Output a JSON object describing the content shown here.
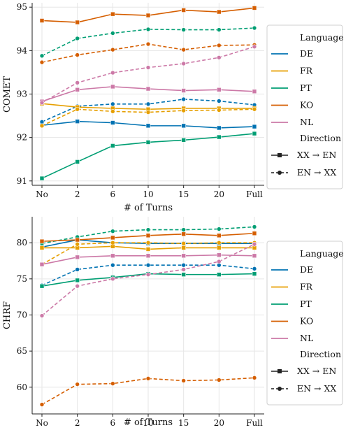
{
  "colors": {
    "DE": "#0072b2",
    "FR": "#e69f00",
    "PT": "#009e73",
    "KO": "#d55e00",
    "NL": "#cc79a7"
  },
  "chart_data": [
    {
      "type": "line",
      "ylabel": "COMET",
      "xlabel": "# of Turns",
      "x": [
        "No",
        "2",
        "6",
        "10",
        "15",
        "20",
        "Full"
      ],
      "ylim": [
        90.9,
        95.1
      ],
      "yticks": [
        91,
        92,
        93,
        94,
        95
      ],
      "grid": true,
      "legend": {
        "placement": "right",
        "title_language": "Language",
        "languages": [
          "DE",
          "FR",
          "PT",
          "KO",
          "NL"
        ],
        "title_direction": "Direction",
        "directions": [
          "XX → EN",
          "EN → XX"
        ]
      },
      "series": [
        {
          "lang": "DE",
          "dir": "XX-EN",
          "values": [
            92.28,
            92.37,
            92.34,
            92.27,
            92.27,
            92.22,
            92.25
          ]
        },
        {
          "lang": "DE",
          "dir": "EN-XX",
          "values": [
            92.36,
            92.72,
            92.77,
            92.77,
            92.88,
            92.84,
            92.75
          ]
        },
        {
          "lang": "FR",
          "dir": "XX-EN",
          "values": [
            92.78,
            92.7,
            92.67,
            92.65,
            92.67,
            92.67,
            92.67
          ]
        },
        {
          "lang": "FR",
          "dir": "EN-XX",
          "values": [
            92.27,
            92.65,
            92.6,
            92.58,
            92.62,
            92.63,
            92.65
          ]
        },
        {
          "lang": "PT",
          "dir": "XX-EN",
          "values": [
            91.06,
            91.44,
            91.81,
            91.89,
            91.94,
            92.01,
            92.09
          ]
        },
        {
          "lang": "PT",
          "dir": "EN-XX",
          "values": [
            93.88,
            94.28,
            94.4,
            94.49,
            94.48,
            94.48,
            94.52
          ]
        },
        {
          "lang": "KO",
          "dir": "XX-EN",
          "values": [
            94.69,
            94.65,
            94.84,
            94.81,
            94.93,
            94.89,
            94.98
          ]
        },
        {
          "lang": "KO",
          "dir": "EN-XX",
          "values": [
            93.73,
            93.9,
            94.02,
            94.15,
            94.02,
            94.12,
            94.13
          ]
        },
        {
          "lang": "NL",
          "dir": "XX-EN",
          "values": [
            92.83,
            93.1,
            93.17,
            93.12,
            93.08,
            93.1,
            93.06
          ]
        },
        {
          "lang": "NL",
          "dir": "EN-XX",
          "values": [
            92.8,
            93.26,
            93.49,
            93.61,
            93.7,
            93.84,
            94.09
          ]
        }
      ]
    },
    {
      "type": "line",
      "ylabel": "CHRF",
      "xlabel": "# of Turns",
      "x": [
        "No",
        "2",
        "6",
        "10",
        "15",
        "20",
        "Full"
      ],
      "ylim": [
        56.3,
        83.6
      ],
      "yticks": [
        60,
        65,
        70,
        75,
        80
      ],
      "grid": true,
      "legend": {
        "placement": "right",
        "title_language": "Language",
        "languages": [
          "DE",
          "FR",
          "PT",
          "KO",
          "NL"
        ],
        "title_direction": "Direction",
        "directions": [
          "XX → EN",
          "EN → XX"
        ]
      },
      "series": [
        {
          "lang": "DE",
          "dir": "XX-EN",
          "values": [
            79.4,
            80.4,
            80.0,
            79.9,
            79.9,
            79.9,
            79.9
          ]
        },
        {
          "lang": "DE",
          "dir": "EN-XX",
          "values": [
            74.1,
            76.3,
            76.9,
            76.9,
            76.9,
            76.9,
            76.4
          ]
        },
        {
          "lang": "FR",
          "dir": "XX-EN",
          "values": [
            79.3,
            79.3,
            79.5,
            79.1,
            79.3,
            79.3,
            79.3
          ]
        },
        {
          "lang": "FR",
          "dir": "EN-XX",
          "values": [
            77.0,
            79.8,
            80.0,
            80.0,
            79.9,
            80.0,
            80.0
          ]
        },
        {
          "lang": "PT",
          "dir": "XX-EN",
          "values": [
            74.0,
            74.8,
            75.2,
            75.7,
            75.6,
            75.6,
            75.7
          ]
        },
        {
          "lang": "PT",
          "dir": "EN-XX",
          "values": [
            79.9,
            80.8,
            81.6,
            81.8,
            81.8,
            81.9,
            82.2
          ]
        },
        {
          "lang": "KO",
          "dir": "XX-EN",
          "values": [
            80.2,
            80.4,
            80.7,
            81.0,
            81.2,
            81.0,
            81.3
          ]
        },
        {
          "lang": "KO",
          "dir": "EN-XX",
          "values": [
            57.6,
            60.4,
            60.5,
            61.2,
            60.9,
            61.0,
            61.3
          ]
        },
        {
          "lang": "NL",
          "dir": "XX-EN",
          "values": [
            77.0,
            78.0,
            78.2,
            78.2,
            78.2,
            78.3,
            78.2
          ]
        },
        {
          "lang": "NL",
          "dir": "EN-XX",
          "values": [
            69.9,
            74.0,
            75.0,
            75.6,
            76.3,
            77.4,
            79.8
          ]
        }
      ]
    }
  ]
}
